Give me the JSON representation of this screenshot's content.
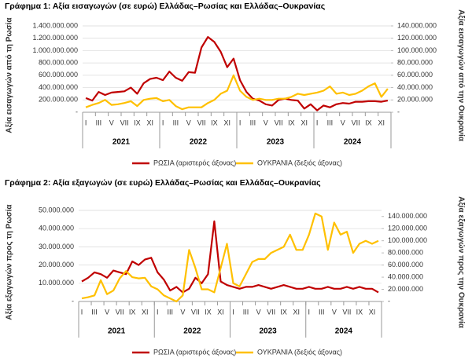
{
  "chart_data": [
    {
      "type": "line",
      "title": "Γράφημα 1: Αξία εισαγωγών (σε ευρώ) Ελλάδας–Ρωσίας και Ελλάδας–Ουκρανίας",
      "ylabel": "Αξία εισαγωγών από τη Ρωσία",
      "y2label": "Αξία εισαγωγών από την Ουκρανία",
      "categories": [
        "I",
        null,
        "III",
        null,
        "V",
        null,
        "VII",
        null,
        "IX",
        null,
        "XI",
        null,
        "I",
        null,
        "III",
        null,
        "V",
        null,
        "VII",
        null,
        "IX",
        null,
        "XI",
        null,
        "I",
        null,
        "III",
        null,
        "V",
        null,
        "VII",
        null,
        "IX",
        null,
        "XI",
        null,
        "I",
        null,
        "III",
        null,
        "V",
        null,
        "VII",
        null,
        "IX",
        null,
        "XI",
        null
      ],
      "year_labels": [
        "2021",
        "2022",
        "2023",
        "2024"
      ],
      "ylim": [
        0,
        1400000000
      ],
      "yticks": [
        {
          "value": 0,
          "label": "-"
        },
        {
          "value": 200000000,
          "label": "200.000.000"
        },
        {
          "value": 400000000,
          "label": "400.000.000"
        },
        {
          "value": 600000000,
          "label": "600.000.000"
        },
        {
          "value": 800000000,
          "label": "800.000.000"
        },
        {
          "value": 1000000000,
          "label": "1.000.000.000"
        },
        {
          "value": 1200000000,
          "label": "1.200.000.000"
        },
        {
          "value": 1400000000,
          "label": "1.400.000.000"
        }
      ],
      "y2lim": [
        0,
        140000000
      ],
      "y2ticks": [
        {
          "value": 0,
          "label": "-"
        },
        {
          "value": 20000000,
          "label": "20.000.000"
        },
        {
          "value": 40000000,
          "label": "40.000.000"
        },
        {
          "value": 60000000,
          "label": "60.000.000"
        },
        {
          "value": 80000000,
          "label": "80.000.000"
        },
        {
          "value": 100000000,
          "label": "100.000.000"
        },
        {
          "value": 120000000,
          "label": "120.000.000"
        },
        {
          "value": 140000000,
          "label": "140.000.000"
        }
      ],
      "grid": true,
      "series": [
        {
          "name": "ΡΩΣΙΑ (αριστερός άξονας)",
          "color": "#c00000",
          "axis": "y",
          "values": [
            230000000,
            190000000,
            330000000,
            280000000,
            320000000,
            330000000,
            340000000,
            400000000,
            300000000,
            470000000,
            540000000,
            560000000,
            520000000,
            660000000,
            560000000,
            510000000,
            650000000,
            640000000,
            1050000000,
            1220000000,
            1140000000,
            980000000,
            730000000,
            870000000,
            520000000,
            330000000,
            220000000,
            190000000,
            130000000,
            110000000,
            200000000,
            220000000,
            200000000,
            190000000,
            60000000,
            130000000,
            30000000,
            110000000,
            80000000,
            130000000,
            150000000,
            140000000,
            170000000,
            170000000,
            180000000,
            180000000,
            170000000,
            190000000
          ]
        },
        {
          "name": "ΟΥΚΡΑΝΙΑ (δεξιός άξονας)",
          "color": "#ffc000",
          "axis": "y2",
          "values": [
            8000000,
            12000000,
            15000000,
            20000000,
            12000000,
            13000000,
            15000000,
            18000000,
            10000000,
            20000000,
            22000000,
            23000000,
            18000000,
            20000000,
            10000000,
            5000000,
            8000000,
            8000000,
            8000000,
            15000000,
            20000000,
            30000000,
            35000000,
            60000000,
            35000000,
            25000000,
            20000000,
            22000000,
            20000000,
            20000000,
            22000000,
            22000000,
            25000000,
            30000000,
            28000000,
            30000000,
            32000000,
            35000000,
            42000000,
            30000000,
            32000000,
            28000000,
            30000000,
            35000000,
            42000000,
            47000000,
            25000000,
            38000000
          ]
        }
      ]
    },
    {
      "type": "line",
      "title": "Γράφημα 2: Αξία εξαγωγών (σε ευρώ) Ελλάδας–Ρωσίας και Ελλάδας–Ουκρανίας",
      "ylabel": "Αξία εξαγωγών προς τη Ρωσία",
      "y2label": "Αξία εξαγωγών προς την Ουκρανία",
      "categories": [
        "I",
        null,
        "III",
        null,
        "V",
        null,
        "VII",
        null,
        "IX",
        null,
        "XI",
        null,
        "I",
        null,
        "III",
        null,
        "V",
        null,
        "VII",
        null,
        "IX",
        null,
        "XI",
        null,
        "I",
        null,
        "III",
        null,
        "V",
        null,
        "VII",
        null,
        "IX",
        null,
        "XI",
        null,
        "I",
        null,
        "III",
        null,
        "V",
        null,
        "VII",
        null,
        "IX",
        null,
        "XI",
        null
      ],
      "year_labels": [
        "2021",
        "2022",
        "2023",
        "2024"
      ],
      "ylim": [
        0,
        50000000
      ],
      "yticks": [
        {
          "value": 0,
          "label": "-"
        },
        {
          "value": 10000000,
          "label": "10.000.000"
        },
        {
          "value": 20000000,
          "label": "20.000.000"
        },
        {
          "value": 30000000,
          "label": "30.000.000"
        },
        {
          "value": 40000000,
          "label": "40.000.000"
        },
        {
          "value": 50000000,
          "label": "50.000.000"
        }
      ],
      "y2lim": [
        0,
        150000000
      ],
      "y2ticks": [
        {
          "value": 0,
          "label": "-"
        },
        {
          "value": 20000000,
          "label": "20.000.000"
        },
        {
          "value": 40000000,
          "label": "40.000.000"
        },
        {
          "value": 60000000,
          "label": "60.000.000"
        },
        {
          "value": 80000000,
          "label": "80.000.000"
        },
        {
          "value": 100000000,
          "label": "100.000.000"
        },
        {
          "value": 120000000,
          "label": "120.000.000"
        },
        {
          "value": 140000000,
          "label": "140.000.000"
        }
      ],
      "grid": true,
      "series": [
        {
          "name": "ΡΩΣΙΑ (αριστερός άξονας)",
          "color": "#c00000",
          "axis": "y",
          "values": [
            11000000,
            13000000,
            16000000,
            15000000,
            13000000,
            17000000,
            16000000,
            15000000,
            22000000,
            20000000,
            23000000,
            24000000,
            16000000,
            12000000,
            6000000,
            8000000,
            5000000,
            7000000,
            13000000,
            10000000,
            15000000,
            44000000,
            11000000,
            9000000,
            8000000,
            7000000,
            8000000,
            8000000,
            9000000,
            8000000,
            7000000,
            8000000,
            9000000,
            8000000,
            7000000,
            7000000,
            8000000,
            7000000,
            7000000,
            8000000,
            7000000,
            7000000,
            8000000,
            7000000,
            8000000,
            7000000,
            7000000,
            5000000
          ]
        },
        {
          "name": "ΟΥΚΡΑΝΙΑ (δεξιός άξονας)",
          "color": "#ffc000",
          "axis": "y2",
          "values": [
            5000000,
            7000000,
            10000000,
            35000000,
            12000000,
            18000000,
            38000000,
            50000000,
            40000000,
            38000000,
            39000000,
            25000000,
            20000000,
            10000000,
            5000000,
            0,
            10000000,
            85000000,
            55000000,
            20000000,
            20000000,
            15000000,
            55000000,
            95000000,
            30000000,
            25000000,
            45000000,
            65000000,
            70000000,
            70000000,
            80000000,
            85000000,
            90000000,
            110000000,
            85000000,
            85000000,
            110000000,
            145000000,
            140000000,
            85000000,
            130000000,
            110000000,
            115000000,
            80000000,
            95000000,
            100000000,
            95000000,
            100000000
          ]
        }
      ]
    }
  ]
}
